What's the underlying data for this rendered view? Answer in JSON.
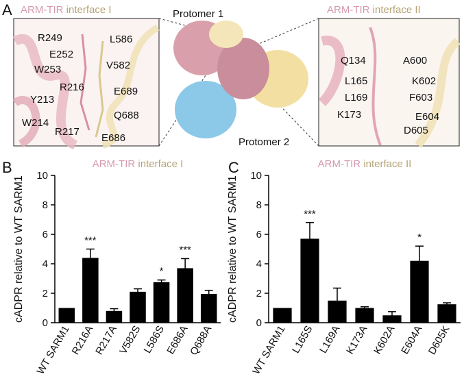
{
  "panel_labels": [
    "A",
    "B",
    "C"
  ],
  "panel_a": {
    "left_title": [
      "ARM-TIR",
      "interface I"
    ],
    "left_residues": [
      "R249",
      "L586",
      "E252",
      "V582",
      "W253",
      "R216",
      "E689",
      "Y213",
      "Q688",
      "W214",
      "R217",
      "E686"
    ],
    "protomers": [
      "Protomer 1",
      "Protomer 2"
    ],
    "right_title": [
      "ARM-TIR",
      "interface II"
    ],
    "right_residues": [
      "Q134",
      "A600",
      "L165",
      "K602",
      "L169",
      "F603",
      "K173",
      "E604",
      "D605"
    ]
  },
  "chart_data": [
    {
      "type": "bar",
      "title": [
        "ARM-TIR",
        "interface I"
      ],
      "y_label": "cADPR relative to WT SARM1",
      "categories": [
        "WT SARM1",
        "R216A",
        "R217A",
        "V582S",
        "L586S",
        "E686A",
        "Q688A"
      ],
      "values": [
        1.0,
        4.4,
        0.8,
        2.1,
        2.75,
        3.7,
        1.95
      ],
      "errors": [
        null,
        0.6,
        0.15,
        0.2,
        0.15,
        0.65,
        0.25
      ],
      "significance": [
        null,
        "***",
        null,
        null,
        "*",
        "***",
        null
      ],
      "color": "#000000",
      "ylim": [
        0,
        10
      ],
      "yticks": [
        0,
        2,
        4,
        6,
        8,
        10
      ]
    },
    {
      "type": "bar",
      "title": [
        "ARM-TIR",
        "interface II"
      ],
      "y_label": "cADPR relative to WT SARM1",
      "categories": [
        "WT SARM1",
        "L165S",
        "L169A",
        "K173A",
        "K602A",
        "E604A",
        "D605K"
      ],
      "values": [
        1.0,
        5.7,
        1.5,
        1.0,
        0.5,
        4.2,
        1.25
      ],
      "errors": [
        null,
        1.1,
        0.85,
        0.08,
        0.25,
        1.0,
        0.1
      ],
      "significance": [
        null,
        "***",
        null,
        null,
        null,
        "*",
        null
      ],
      "color": "#000000",
      "ylim": [
        0,
        10
      ],
      "yticks": [
        0,
        2,
        4,
        6,
        8,
        10
      ]
    }
  ]
}
